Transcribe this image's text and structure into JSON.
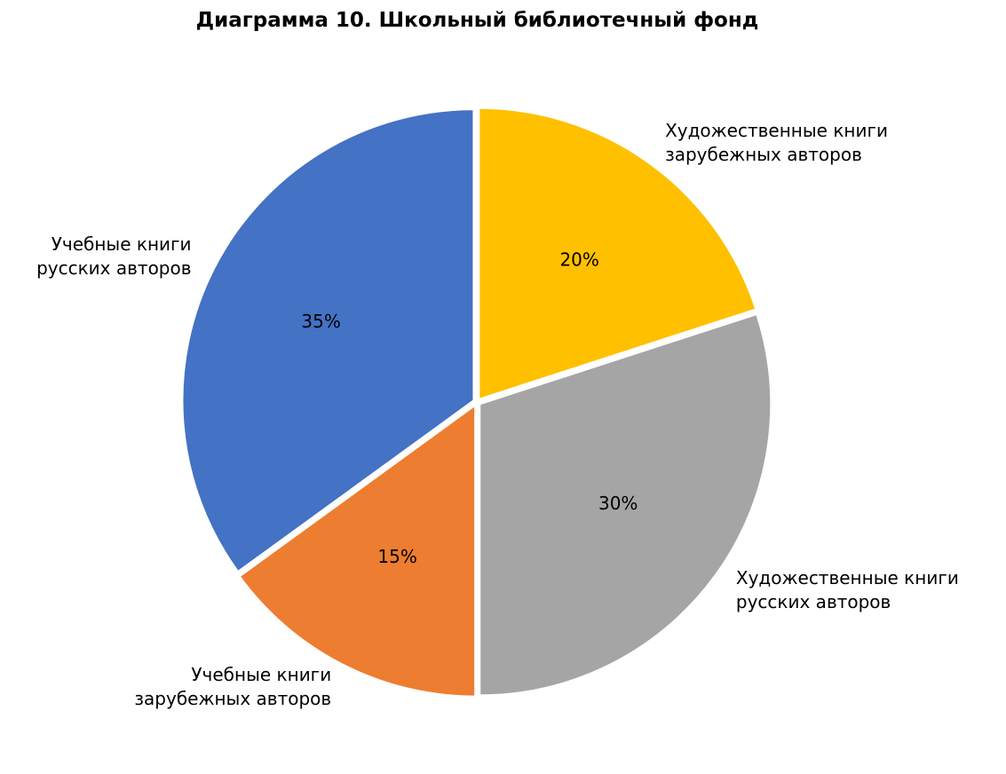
{
  "chart_data": {
    "type": "pie",
    "title": "Диаграмма 10. Школьный библиотечный фонд",
    "categories": [
      "Учебные книги\nрусских авторов",
      "Учебные книги\nзарубежных авторов",
      "Художественные книги\nрусских авторов",
      "Художественные книги\nзарубежных авторов"
    ],
    "values": [
      35,
      15,
      30,
      20
    ],
    "value_labels": [
      "35%",
      "15%",
      "30%",
      "20%"
    ],
    "colors": [
      "#4472c4",
      "#ed7d31",
      "#a5a5a5",
      "#ffc000"
    ]
  }
}
